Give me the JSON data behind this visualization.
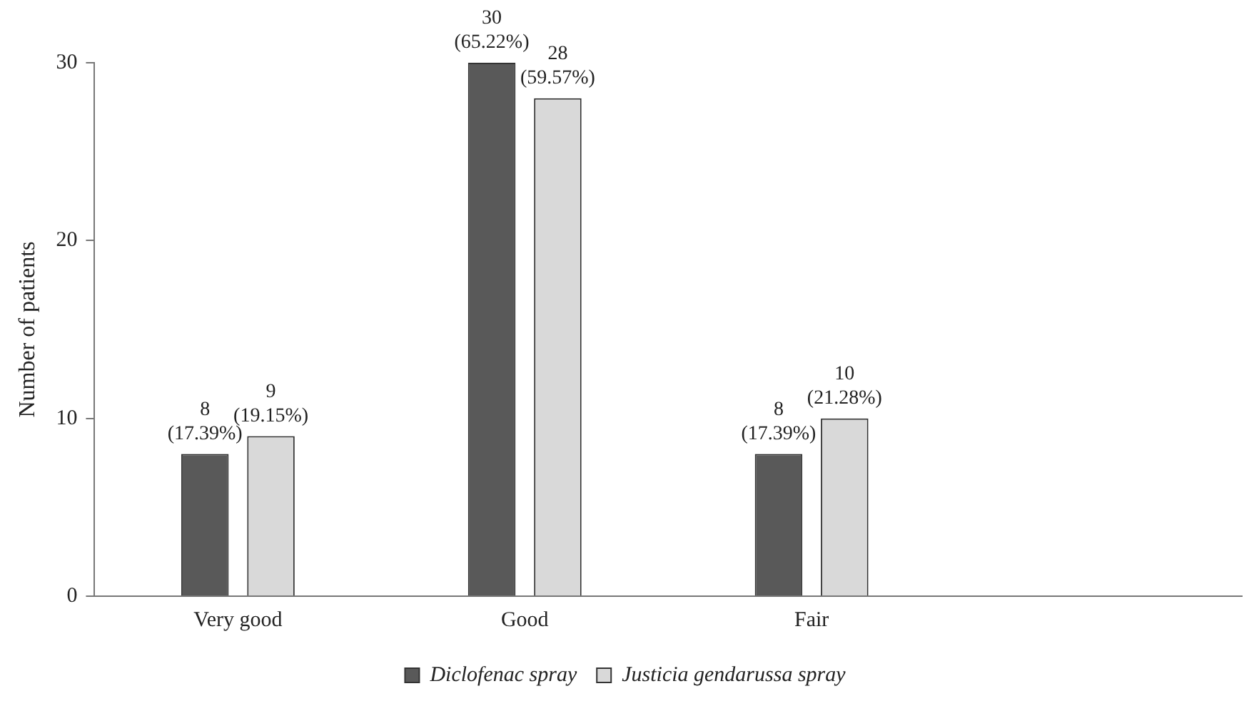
{
  "chart_data": {
    "type": "bar",
    "ylabel": "Number of patients",
    "categories": [
      "Very good",
      "Good",
      "Fair",
      null
    ],
    "series": [
      {
        "name": "Diclofenac spray",
        "color": "#595959",
        "values": [
          8,
          30,
          8,
          null
        ],
        "value_labels": [
          "8\n(17.39%)",
          "30\n(65.22%)",
          "8\n(17.39%)",
          null
        ]
      },
      {
        "name": "Justicia gendarussa spray",
        "color": "#d9d9d9",
        "values": [
          9,
          28,
          10,
          null
        ],
        "value_labels": [
          "9\n(19.15%)",
          "28\n(59.57%)",
          "10\n(21.28%)",
          null
        ]
      }
    ],
    "ylim": [
      0,
      30
    ],
    "yticks": [
      0,
      10,
      20,
      30
    ],
    "grid": false,
    "legend": "bottom"
  }
}
